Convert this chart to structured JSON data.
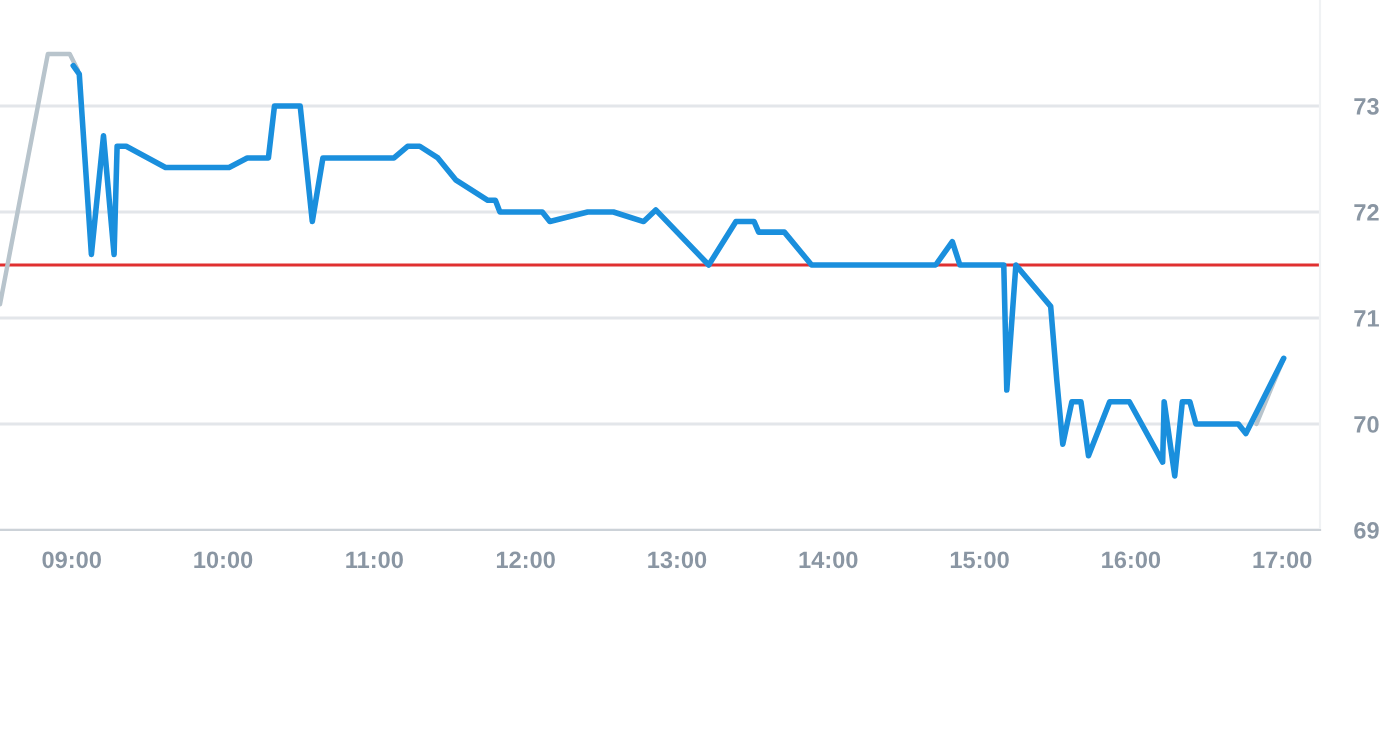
{
  "chart_data": {
    "type": "line",
    "series": [
      {
        "color": "#b8c4cc",
        "x": [
          8.526,
          8.842,
          8.987,
          9.04,
          12.0,
          16.83,
          17.01
        ],
        "values": [
          71.13,
          73.49,
          73.49,
          73.34,
          null,
          70.0,
          70.62
        ]
      },
      {
        "color": "#1a8fdd",
        "x": [
          9.01,
          9.05,
          9.13,
          9.21,
          9.28,
          9.3,
          9.36,
          9.62,
          10.04,
          10.16,
          10.3,
          10.34,
          10.51,
          10.59,
          10.66,
          11.13,
          11.22,
          11.3,
          11.42,
          11.54,
          11.75,
          11.8,
          11.83,
          12.11,
          12.16,
          12.41,
          12.58,
          12.78,
          12.86,
          13.21,
          13.39,
          13.51,
          13.54,
          13.71,
          13.89,
          14.71,
          14.82,
          14.87,
          15.16,
          15.18,
          15.24,
          15.47,
          15.51,
          15.55,
          15.61,
          15.67,
          15.72,
          15.86,
          15.99,
          16.21,
          16.22,
          16.29,
          16.34,
          16.39,
          16.43,
          16.71,
          16.76,
          17.01
        ],
        "values": [
          73.38,
          73.3,
          71.6,
          72.72,
          71.6,
          72.62,
          72.62,
          72.42,
          72.42,
          72.51,
          72.51,
          73.0,
          73.0,
          71.91,
          72.51,
          72.51,
          72.62,
          72.62,
          72.51,
          72.3,
          72.11,
          72.11,
          72.0,
          72.0,
          71.91,
          72.0,
          72.0,
          71.91,
          72.02,
          71.5,
          71.91,
          71.91,
          71.81,
          71.81,
          71.5,
          71.5,
          71.72,
          71.5,
          71.5,
          70.32,
          71.5,
          71.11,
          70.42,
          69.81,
          70.21,
          70.21,
          69.7,
          70.21,
          70.21,
          69.64,
          70.21,
          69.51,
          70.21,
          70.21,
          70.0,
          70.0,
          69.91,
          70.62
        ]
      }
    ],
    "xlim": [
      8.526,
      17.25
    ],
    "xticks": [
      {
        "value": 9,
        "label": "09:00"
      },
      {
        "value": 10,
        "label": "10:00"
      },
      {
        "value": 11,
        "label": "11:00"
      },
      {
        "value": 12,
        "label": "12:00"
      },
      {
        "value": 13,
        "label": "13:00"
      },
      {
        "value": 14,
        "label": "14:00"
      },
      {
        "value": 15,
        "label": "15:00"
      },
      {
        "value": 16,
        "label": "16:00"
      },
      {
        "value": 17,
        "label": "17:00"
      }
    ],
    "ylim": [
      69,
      74
    ],
    "yticks": [
      69,
      70,
      71,
      72,
      73
    ],
    "ref_lines": [
      {
        "axis": "y",
        "value": 71.5,
        "color": "#e03030",
        "line_style": "solid"
      }
    ],
    "grid": "y",
    "marker": "none",
    "line_style": "solid"
  }
}
